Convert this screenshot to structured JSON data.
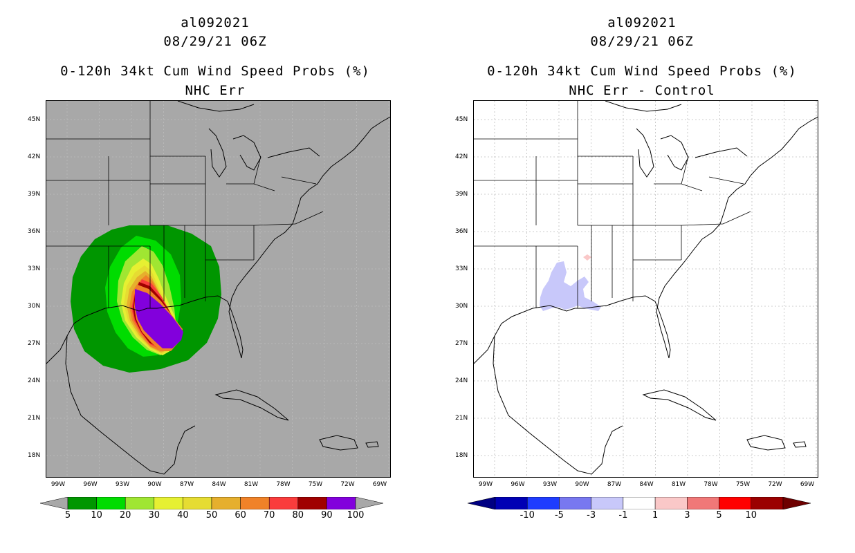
{
  "left_panel": {
    "storm_id": "al092021",
    "datetime": "08/29/21 06Z",
    "title": "0-120h 34kt Cum Wind Speed Probs (%)",
    "subtitle": "NHC Err",
    "background_color": "#a8a8a8",
    "colorbar": {
      "colors": [
        "#009600",
        "#00dc00",
        "#a0e632",
        "#e6f032",
        "#e6dc32",
        "#e6af2d",
        "#f08228",
        "#fa3c3c",
        "#a00000",
        "#8200dc"
      ],
      "labels": [
        "5",
        "10",
        "20",
        "30",
        "40",
        "50",
        "60",
        "70",
        "80",
        "90",
        "100"
      ],
      "end_arrow_color": "#a8a8a8"
    }
  },
  "right_panel": {
    "storm_id": "al092021",
    "datetime": "08/29/21 06Z",
    "title": "0-120h 34kt Cum Wind Speed Probs (%)",
    "subtitle": "NHC Err - Control",
    "background_color": "#ffffff",
    "colorbar": {
      "colors": [
        "#0000b4",
        "#1e3cff",
        "#7878f0",
        "#c8c8fa",
        "#ffffff",
        "#fac8c8",
        "#f07878",
        "#ff0000",
        "#9b0000"
      ],
      "labels": [
        "-10",
        "-5",
        "-3",
        "-1",
        "1",
        "3",
        "5",
        "10"
      ],
      "start_arrow_color": "#000082",
      "end_arrow_color": "#6e0000"
    }
  },
  "map": {
    "lat_labels": [
      "45N",
      "42N",
      "39N",
      "36N",
      "33N",
      "30N",
      "27N",
      "24N",
      "21N",
      "18N"
    ],
    "lon_labels": [
      "99W",
      "96W",
      "93W",
      "90W",
      "87W",
      "84W",
      "81W",
      "78W",
      "75W",
      "72W",
      "69W"
    ]
  }
}
